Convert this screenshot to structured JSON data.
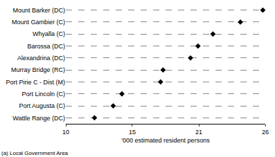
{
  "chart_data": {
    "type": "scatter",
    "orientation": "horizontal",
    "x_label": "'000 estimated resident persons",
    "annotations": [
      "(a) Local Government Area"
    ],
    "categories": [
      "Mount Barker (DC)",
      "Mount Gambier (C)",
      "Whyalla (C)",
      "Barossa (DC)",
      "Alexandrina (DC)",
      "Murray Bridge (RC)",
      "Port Pirie C - Dist (M)",
      "Port Lincoln (C)",
      "Port Augusta (C)",
      "Wattle Range (DC)"
    ],
    "values": [
      25.8,
      24.0,
      21.8,
      20.6,
      20.0,
      17.8,
      17.6,
      14.5,
      13.8,
      12.3
    ],
    "color": "#000000",
    "marker": "diamond",
    "xlim": [
      10,
      26
    ],
    "xticks": [
      10,
      {
        "value": 15.33,
        "label": "15"
      },
      {
        "value": 20.67,
        "label": "21"
      },
      26
    ],
    "grid": true
  }
}
